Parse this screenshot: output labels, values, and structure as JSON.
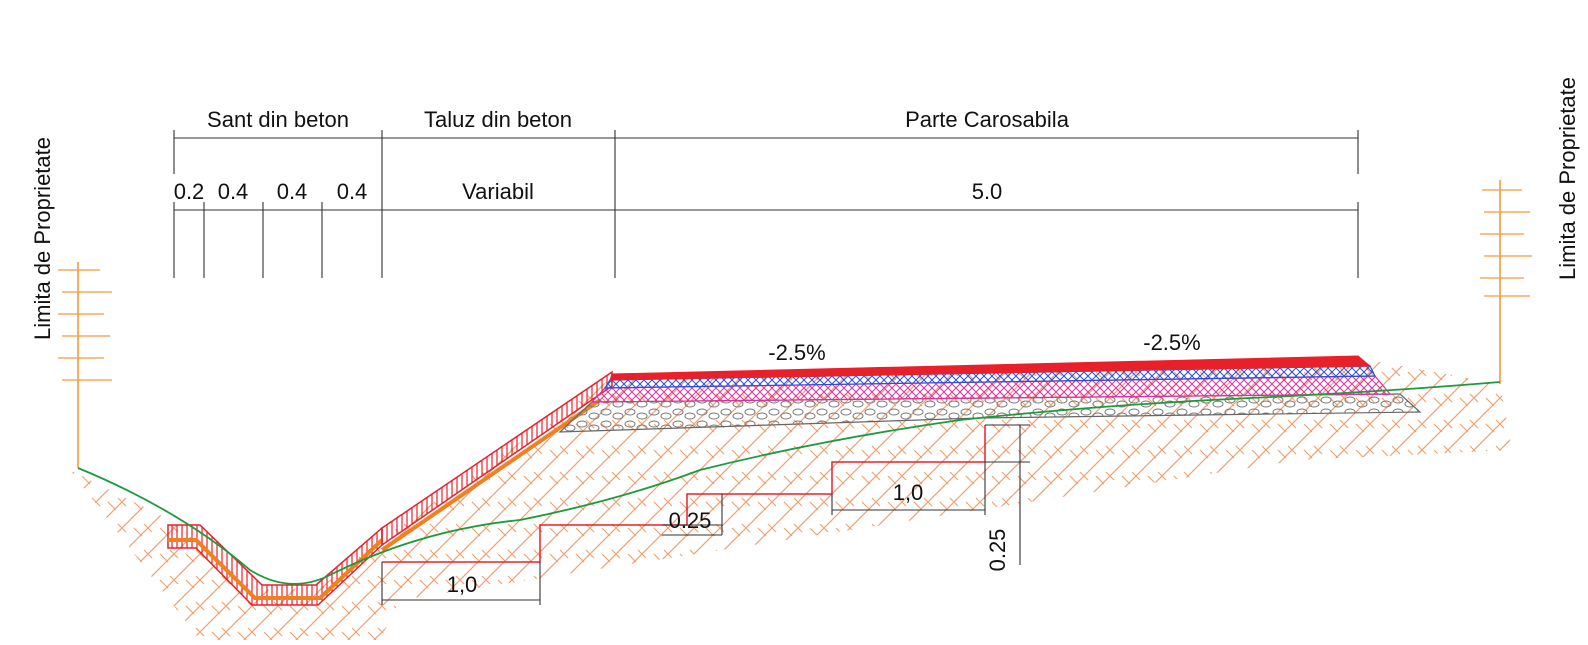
{
  "property_limit": {
    "left": "Limita de Proprietate",
    "right": "Limita de Proprietate"
  },
  "sections": {
    "ditch": "Sant din beton",
    "slope": "Taluz din beton",
    "carriageway": "Parte Carosabila"
  },
  "widths": {
    "d1": "0.2",
    "d2": "0.4",
    "d3": "0.4",
    "d4": "0.4",
    "slope": "Variabil",
    "carriageway": "5.0"
  },
  "slopes": {
    "left": "-2.5%",
    "right": "-2.5%"
  },
  "steps": {
    "step_width_1": "1,0",
    "step_width_2": "1,0",
    "step_height_1": "0.25",
    "step_height_2": "0.25"
  },
  "colors": {
    "asphalt_top": "#e8202a",
    "binder_layer": "#2b4fd8",
    "base_layer": "#e0309a",
    "gravel_layer": "#8a8a8a",
    "geotextile": "#f08020",
    "ground_line": "#1e9a3c",
    "property_marker": "#f59a3c",
    "ground_hatch": "#f0a070",
    "excavation_line": "#e8202a"
  }
}
